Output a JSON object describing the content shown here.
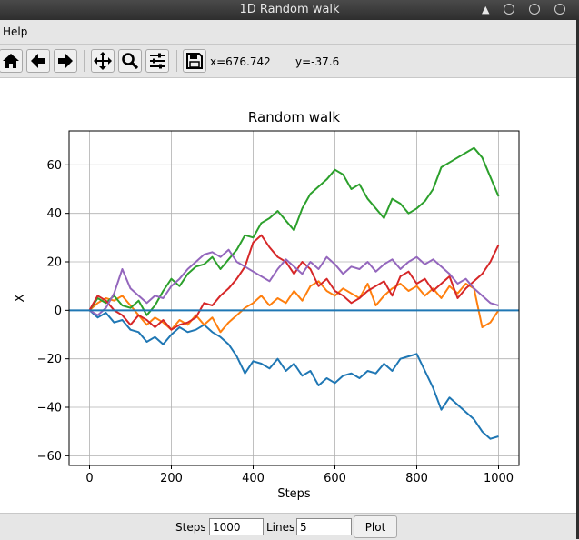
{
  "window": {
    "title": "1D Random walk"
  },
  "menu": {
    "items": [
      "Help"
    ]
  },
  "toolbar": {
    "buttons": [
      "home-icon",
      "back-arrow-icon",
      "forward-arrow-icon",
      "pan-icon",
      "zoom-icon",
      "configure-subplots-icon",
      "save-icon"
    ],
    "x_readout": "x=676.742",
    "y_readout": "y=-37.6"
  },
  "controls": {
    "steps_label": "Steps",
    "steps_value": "1000",
    "lines_label": "Lines",
    "lines_value": "5",
    "plot_label": "Plot"
  },
  "chart_data": {
    "type": "line",
    "title": "Random walk",
    "xlabel": "Steps",
    "ylabel": "X",
    "xlim": [
      -50,
      1050
    ],
    "ylim": [
      -64,
      74
    ],
    "xticks": [
      0,
      200,
      400,
      600,
      800,
      1000
    ],
    "yticks": [
      -60,
      -40,
      -20,
      0,
      20,
      40,
      60
    ],
    "grid": true,
    "zero_line": {
      "y": 0,
      "color": "#1f77b4"
    },
    "series": [
      {
        "color": "#1f77b4",
        "x": [
          0,
          20,
          40,
          60,
          80,
          100,
          120,
          140,
          160,
          180,
          200,
          220,
          240,
          260,
          280,
          300,
          320,
          340,
          360,
          380,
          400,
          420,
          440,
          460,
          480,
          500,
          520,
          540,
          560,
          580,
          600,
          620,
          640,
          660,
          680,
          700,
          720,
          740,
          760,
          780,
          800,
          820,
          840,
          860,
          880,
          900,
          920,
          940,
          960,
          980,
          1000
        ],
        "y": [
          0,
          -3,
          -1,
          -5,
          -4,
          -8,
          -9,
          -13,
          -11,
          -14,
          -10,
          -7,
          -9,
          -8,
          -6,
          -9,
          -11,
          -14,
          -19,
          -26,
          -21,
          -22,
          -24,
          -20,
          -25,
          -22,
          -27,
          -25,
          -31,
          -28,
          -30,
          -27,
          -26,
          -28,
          -25,
          -26,
          -22,
          -25,
          -20,
          -19,
          -18,
          -25,
          -32,
          -41,
          -36,
          -39,
          -42,
          -45,
          -50,
          -53,
          -52
        ]
      },
      {
        "color": "#ff7f0e",
        "x": [
          0,
          20,
          40,
          60,
          80,
          100,
          120,
          140,
          160,
          180,
          200,
          220,
          240,
          260,
          280,
          300,
          320,
          340,
          360,
          380,
          400,
          420,
          440,
          460,
          480,
          500,
          520,
          540,
          560,
          580,
          600,
          620,
          640,
          660,
          680,
          700,
          720,
          740,
          760,
          780,
          800,
          820,
          840,
          860,
          880,
          900,
          920,
          940,
          960,
          980,
          1000
        ],
        "y": [
          0,
          3,
          5,
          4,
          6,
          2,
          -2,
          -6,
          -3,
          -5,
          -8,
          -4,
          -6,
          -2,
          -6,
          -3,
          -9,
          -5,
          -2,
          1,
          3,
          6,
          2,
          5,
          3,
          8,
          4,
          10,
          12,
          8,
          6,
          9,
          7,
          5,
          11,
          2,
          6,
          9,
          11,
          8,
          10,
          6,
          9,
          5,
          10,
          7,
          11,
          9,
          -7,
          -5,
          0
        ]
      },
      {
        "color": "#2ca02c",
        "x": [
          0,
          20,
          40,
          60,
          80,
          100,
          120,
          140,
          160,
          180,
          200,
          220,
          240,
          260,
          280,
          300,
          320,
          340,
          360,
          380,
          400,
          420,
          440,
          460,
          480,
          500,
          520,
          540,
          560,
          580,
          600,
          620,
          640,
          660,
          680,
          700,
          720,
          740,
          760,
          780,
          800,
          820,
          840,
          860,
          880,
          900,
          920,
          940,
          960,
          980,
          1000
        ],
        "y": [
          0,
          5,
          3,
          6,
          2,
          1,
          4,
          -2,
          2,
          8,
          13,
          10,
          15,
          18,
          19,
          22,
          17,
          21,
          25,
          31,
          30,
          36,
          38,
          41,
          37,
          33,
          42,
          48,
          51,
          54,
          58,
          56,
          50,
          52,
          46,
          42,
          38,
          46,
          44,
          40,
          42,
          45,
          50,
          59,
          61,
          63,
          65,
          67,
          63,
          55,
          47
        ]
      },
      {
        "color": "#d62728",
        "x": [
          0,
          20,
          40,
          60,
          80,
          100,
          120,
          140,
          160,
          180,
          200,
          220,
          240,
          260,
          280,
          300,
          320,
          340,
          360,
          380,
          400,
          420,
          440,
          460,
          480,
          500,
          520,
          540,
          560,
          580,
          600,
          620,
          640,
          660,
          680,
          700,
          720,
          740,
          760,
          780,
          800,
          820,
          840,
          860,
          880,
          900,
          920,
          940,
          960,
          980,
          1000
        ],
        "y": [
          0,
          6,
          4,
          0,
          -2,
          -6,
          -2,
          -4,
          -7,
          -4,
          -8,
          -6,
          -5,
          -3,
          3,
          2,
          6,
          9,
          13,
          18,
          28,
          31,
          26,
          22,
          20,
          15,
          20,
          17,
          10,
          13,
          8,
          6,
          3,
          5,
          8,
          10,
          12,
          6,
          14,
          16,
          11,
          13,
          8,
          11,
          14,
          5,
          9,
          12,
          15,
          20,
          27
        ]
      },
      {
        "color": "#9467bd",
        "x": [
          0,
          20,
          40,
          60,
          80,
          100,
          120,
          140,
          160,
          180,
          200,
          220,
          240,
          260,
          280,
          300,
          320,
          340,
          360,
          380,
          400,
          420,
          440,
          460,
          480,
          500,
          520,
          540,
          560,
          580,
          600,
          620,
          640,
          660,
          680,
          700,
          720,
          740,
          760,
          780,
          800,
          820,
          840,
          860,
          880,
          900,
          920,
          940,
          960,
          980,
          1000
        ],
        "y": [
          0,
          -2,
          1,
          7,
          17,
          9,
          6,
          3,
          6,
          5,
          10,
          13,
          17,
          20,
          23,
          24,
          22,
          25,
          20,
          18,
          16,
          14,
          12,
          17,
          21,
          18,
          15,
          20,
          17,
          22,
          19,
          15,
          18,
          17,
          20,
          16,
          19,
          21,
          17,
          20,
          22,
          19,
          21,
          18,
          15,
          11,
          13,
          9,
          6,
          3,
          2
        ]
      }
    ]
  }
}
